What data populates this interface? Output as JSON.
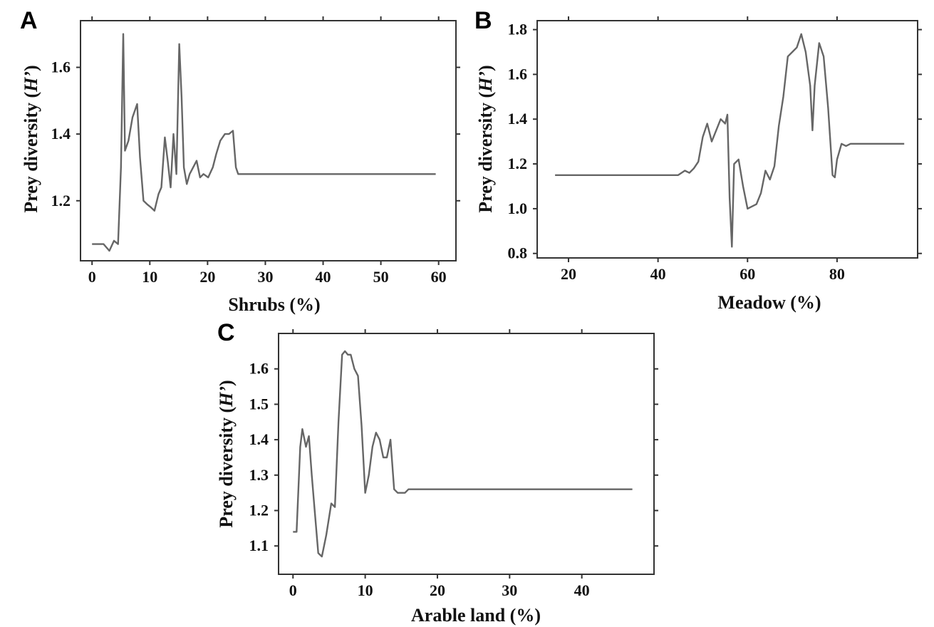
{
  "chart_data": [
    {
      "type": "line",
      "panel": "A",
      "xlabel": "Shrubs (%)",
      "ylabel_prefix": "Prey diversity (",
      "ylabel_italic": "H’",
      "ylabel_suffix": ")",
      "xlim": [
        -2,
        63
      ],
      "ylim": [
        1.02,
        1.74
      ],
      "xticks": [
        0,
        10,
        20,
        30,
        40,
        50,
        60
      ],
      "yticks": [
        1.2,
        1.4,
        1.6
      ],
      "ytick_labels": [
        "1.2",
        "1.4",
        "1.6"
      ],
      "grid": false,
      "x": [
        0,
        2,
        3,
        3.8,
        4.5,
        5.0,
        5.4,
        5.7,
        6.3,
        7.0,
        7.8,
        8.3,
        8.9,
        9.5,
        10.2,
        10.8,
        11.5,
        12.0,
        12.6,
        13.1,
        13.6,
        14.1,
        14.6,
        15.1,
        15.5,
        15.9,
        16.4,
        16.9,
        17.5,
        18.1,
        18.7,
        19.3,
        20.1,
        20.9,
        21.5,
        22.2,
        23.0,
        23.7,
        24.4,
        24.9,
        25.3,
        59.5
      ],
      "values": [
        1.07,
        1.07,
        1.05,
        1.08,
        1.07,
        1.3,
        1.7,
        1.35,
        1.38,
        1.45,
        1.49,
        1.33,
        1.2,
        1.19,
        1.18,
        1.17,
        1.22,
        1.24,
        1.39,
        1.32,
        1.24,
        1.4,
        1.28,
        1.67,
        1.51,
        1.3,
        1.25,
        1.28,
        1.3,
        1.32,
        1.27,
        1.28,
        1.27,
        1.3,
        1.34,
        1.38,
        1.4,
        1.4,
        1.41,
        1.3,
        1.28,
        1.28
      ]
    },
    {
      "type": "line",
      "panel": "B",
      "xlabel": "Meadow (%)",
      "ylabel_prefix": "Prey diversity (",
      "ylabel_italic": "H’",
      "ylabel_suffix": ")",
      "xlim": [
        13,
        98
      ],
      "ylim": [
        0.78,
        1.84
      ],
      "xticks": [
        20,
        40,
        60,
        80
      ],
      "yticks": [
        0.8,
        1.0,
        1.2,
        1.4,
        1.6,
        1.8
      ],
      "ytick_labels": [
        "0.8",
        "1.0",
        "1.2",
        "1.4",
        "1.6",
        "1.8"
      ],
      "grid": false,
      "x": [
        17,
        44.5,
        46,
        47,
        48,
        49,
        50,
        51,
        52,
        53,
        54,
        55,
        55.5,
        56,
        56.5,
        57,
        58,
        59,
        60,
        61,
        62,
        63,
        64,
        65,
        66,
        67,
        68,
        69,
        70,
        71,
        72,
        73,
        74,
        74.5,
        75,
        76,
        77,
        78,
        79,
        79.5,
        80,
        81,
        82,
        83,
        95
      ],
      "values": [
        1.15,
        1.15,
        1.17,
        1.16,
        1.18,
        1.21,
        1.32,
        1.38,
        1.3,
        1.35,
        1.4,
        1.38,
        1.42,
        1.05,
        0.83,
        1.2,
        1.22,
        1.1,
        1.0,
        1.01,
        1.02,
        1.07,
        1.17,
        1.13,
        1.19,
        1.37,
        1.5,
        1.68,
        1.7,
        1.72,
        1.78,
        1.7,
        1.55,
        1.35,
        1.55,
        1.74,
        1.68,
        1.45,
        1.15,
        1.14,
        1.22,
        1.29,
        1.28,
        1.29,
        1.29
      ]
    },
    {
      "type": "line",
      "panel": "C",
      "xlabel": "Arable land (%)",
      "ylabel_prefix": "Prey diversity (",
      "ylabel_italic": "H’",
      "ylabel_suffix": ")",
      "xlim": [
        -2,
        50
      ],
      "ylim": [
        1.02,
        1.7
      ],
      "xticks": [
        0,
        10,
        20,
        30,
        40
      ],
      "yticks": [
        1.1,
        1.2,
        1.3,
        1.4,
        1.5,
        1.6
      ],
      "ytick_labels": [
        "1.1",
        "1.2",
        "1.3",
        "1.4",
        "1.5",
        "1.6"
      ],
      "grid": false,
      "x": [
        0,
        0.5,
        1.0,
        1.3,
        1.8,
        2.2,
        2.6,
        3.0,
        3.5,
        4.0,
        4.6,
        5.3,
        5.8,
        6.3,
        6.8,
        7.2,
        7.6,
        8.0,
        8.5,
        9.0,
        9.5,
        10.0,
        10.5,
        11.0,
        11.5,
        12.0,
        12.5,
        13.0,
        13.5,
        14.0,
        14.5,
        15.0,
        15.5,
        16.0,
        47
      ],
      "values": [
        1.14,
        1.14,
        1.38,
        1.43,
        1.38,
        1.41,
        1.3,
        1.2,
        1.08,
        1.07,
        1.13,
        1.22,
        1.21,
        1.45,
        1.64,
        1.65,
        1.64,
        1.64,
        1.6,
        1.58,
        1.44,
        1.25,
        1.3,
        1.38,
        1.42,
        1.4,
        1.35,
        1.35,
        1.4,
        1.26,
        1.25,
        1.25,
        1.25,
        1.26,
        1.26
      ]
    }
  ]
}
